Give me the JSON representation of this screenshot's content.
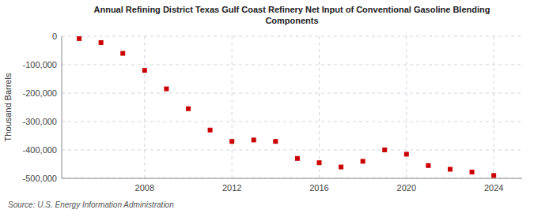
{
  "chart_data": {
    "type": "scatter",
    "title": "Annual Refining District Texas Gulf Coast Refinery Net Input of Conventional Gasoline Blending\nComponents",
    "ylabel": "Thousand Barrels",
    "annotations": [
      "Source: U.S. Energy Information Administration"
    ],
    "x": [
      2005,
      2006,
      2007,
      2008,
      2009,
      2010,
      2011,
      2012,
      2013,
      2014,
      2015,
      2016,
      2017,
      2018,
      2019,
      2020,
      2021,
      2022,
      2023,
      2024
    ],
    "values": [
      -8000,
      -22000,
      -60000,
      -120000,
      -185000,
      -255000,
      -330000,
      -370000,
      -365000,
      -370000,
      -430000,
      -445000,
      -460000,
      -440000,
      -400000,
      -415000,
      -455000,
      -468000,
      -478000,
      -490000
    ],
    "color": "#cc0000",
    "marker": "square",
    "xlim": [
      2004.2,
      2025.3
    ],
    "ylim": [
      -500000,
      0
    ],
    "xticks": [
      2008,
      2012,
      2016,
      2020,
      2024
    ],
    "yticks": [
      0,
      {
        "value": -100000,
        "label": "-100,000"
      },
      {
        "value": -200000,
        "label": "-200,000"
      },
      {
        "value": -300000,
        "label": "-300,000"
      },
      {
        "value": -400000,
        "label": "-400,000"
      },
      {
        "value": -500000,
        "label": "-500,000"
      }
    ],
    "grid": true
  }
}
